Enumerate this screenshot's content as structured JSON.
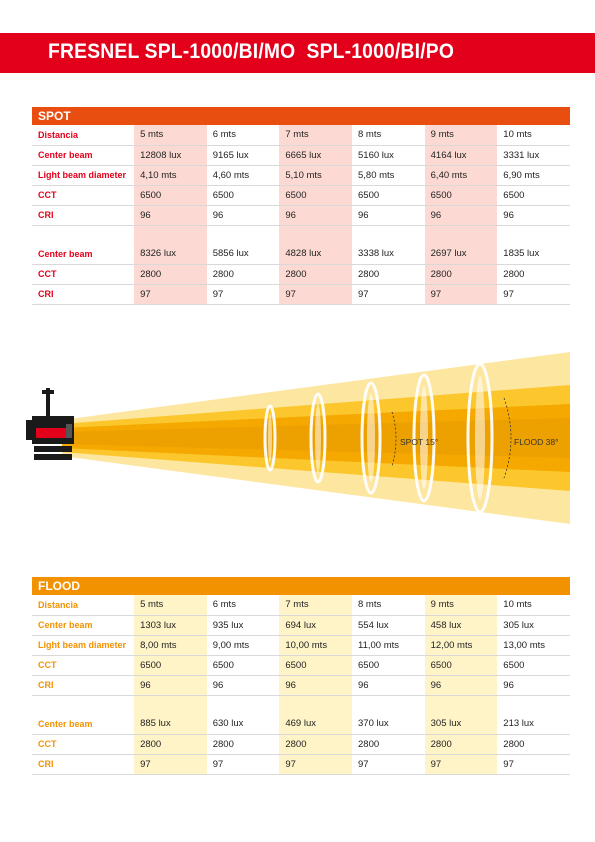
{
  "header": {
    "title": "FRESNEL SPL-1000/BI/MO  SPL-1000/BI/PO"
  },
  "spot": {
    "title": "SPOT",
    "rows": [
      {
        "label": "Distancia",
        "values": [
          "5 mts",
          "6 mts",
          "7 mts",
          "8 mts",
          "9 mts",
          "10 mts"
        ]
      },
      {
        "label": "Center beam",
        "values": [
          "12808 lux",
          "9165 lux",
          "6665 lux",
          "5160 lux",
          "4164 lux",
          "3331 lux"
        ]
      },
      {
        "label": "Light beam diameter",
        "values": [
          "4,10 mts",
          "4,60 mts",
          "5,10 mts",
          "5,80 mts",
          "6,40 mts",
          "6,90 mts"
        ]
      },
      {
        "label": "CCT",
        "values": [
          "6500",
          "6500",
          "6500",
          "6500",
          "6500",
          "6500"
        ]
      },
      {
        "label": "CRI",
        "values": [
          "96",
          "96",
          "96",
          "96",
          "96",
          "96"
        ]
      }
    ],
    "rows2": [
      {
        "label": "Center beam",
        "values": [
          "8326 lux",
          "5856 lux",
          "4828 lux",
          "3338 lux",
          "2697 lux",
          "1835 lux"
        ]
      },
      {
        "label": "CCT",
        "values": [
          "2800",
          "2800",
          "2800",
          "2800",
          "2800",
          "2800"
        ]
      },
      {
        "label": "CRI",
        "values": [
          "97",
          "97",
          "97",
          "97",
          "97",
          "97"
        ]
      }
    ]
  },
  "diagram": {
    "spot_label": "SPOT 15°",
    "flood_label": "FLOOD 38°",
    "colors": {
      "outer": "#fde6a0",
      "middle": "#fcc72c",
      "inner": "#f5a800",
      "core": "#eda100",
      "lamp_red": "#e2001a",
      "lamp_dark": "#1a1a1a"
    },
    "icons": [
      "lamp-icon"
    ]
  },
  "flood": {
    "title": "FLOOD",
    "rows": [
      {
        "label": "Distancia",
        "values": [
          "5 mts",
          "6 mts",
          "7 mts",
          "8 mts",
          "9 mts",
          "10 mts"
        ]
      },
      {
        "label": "Center beam",
        "values": [
          "1303 lux",
          "935 lux",
          "694 lux",
          "554 lux",
          "458 lux",
          "305 lux"
        ]
      },
      {
        "label": "Light beam diameter",
        "values": [
          "8,00 mts",
          "9,00 mts",
          "10,00 mts",
          "11,00 mts",
          "12,00 mts",
          "13,00 mts"
        ]
      },
      {
        "label": "CCT",
        "values": [
          "6500",
          "6500",
          "6500",
          "6500",
          "6500",
          "6500"
        ]
      },
      {
        "label": "CRI",
        "values": [
          "96",
          "96",
          "96",
          "96",
          "96",
          "96"
        ]
      }
    ],
    "rows2": [
      {
        "label": "Center beam",
        "values": [
          "885 lux",
          "630 lux",
          "469 lux",
          "370 lux",
          "305 lux",
          "213 lux"
        ]
      },
      {
        "label": "CCT",
        "values": [
          "2800",
          "2800",
          "2800",
          "2800",
          "2800",
          "2800"
        ]
      },
      {
        "label": "CRI",
        "values": [
          "97",
          "97",
          "97",
          "97",
          "97",
          "97"
        ]
      }
    ]
  }
}
